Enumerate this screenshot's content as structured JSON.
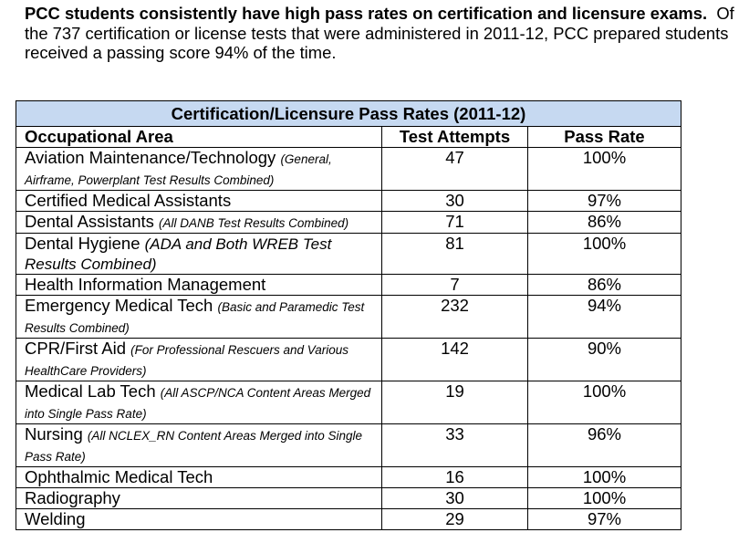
{
  "intro": {
    "bold": "PCC students consistently have high pass rates on certification and licensure exams.",
    "text": "Of the 737 certification or license tests that were administered in 2011-12, PCC prepared students received a passing score 94% of the time."
  },
  "table": {
    "title": "Certification/Licensure Pass Rates (2011-12)",
    "header": [
      "Occupational Area",
      "Test Attempts",
      "Pass Rate"
    ],
    "rows": [
      {
        "area": "Aviation Maintenance/Technology",
        "note": "(General, Airframe, Powerplant Test Results Combined)",
        "attempts": "47",
        "rate": "100%"
      },
      {
        "area": "Certified Medical Assistants",
        "attempts": "30",
        "rate": "97%"
      },
      {
        "area": "Dental Assistants",
        "note": "(All DANB Test Results Combined)",
        "attempts": "71",
        "rate": "86%"
      },
      {
        "area": "Dental Hygiene",
        "note": "(ADA and Both WREB Test Results Combined)",
        "attempts": "81",
        "rate": "100%"
      },
      {
        "area": "Health Information Management",
        "attempts": "7",
        "rate": "86%"
      },
      {
        "area": "Emergency Medical Tech",
        "note": "(Basic and Paramedic Test Results Combined)",
        "attempts": "232",
        "rate": "94%"
      },
      {
        "area": "CPR/First Aid",
        "note": "(For Professional Rescuers and Various HealthCare Providers)",
        "attempts": "142",
        "rate": "90%"
      },
      {
        "area": "Medical Lab Tech",
        "note": "(All ASCP/NCA Content Areas Merged into Single Pass Rate)",
        "attempts": "19",
        "rate": "100%"
      },
      {
        "area": "Nursing",
        "note": "(All NCLEX_RN Content Areas Merged into Single Pass Rate)",
        "attempts": "33",
        "rate": "96%"
      },
      {
        "area": "Ophthalmic Medical Tech",
        "attempts": "16",
        "rate": "100%"
      },
      {
        "area": "Radiography",
        "attempts": "30",
        "rate": "100%"
      },
      {
        "area": "Welding",
        "attempts": "29",
        "rate": "97%"
      }
    ]
  }
}
